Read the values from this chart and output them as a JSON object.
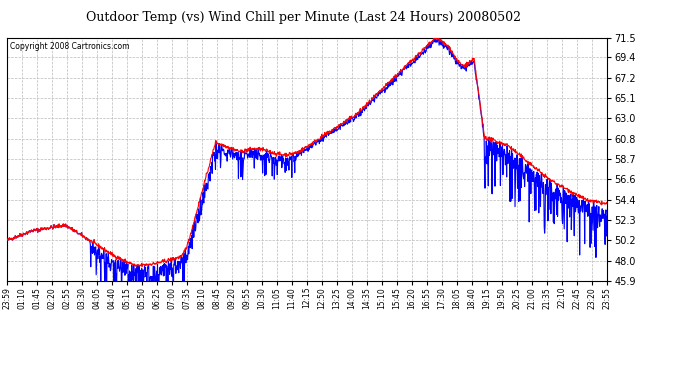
{
  "title": "Outdoor Temp (vs) Wind Chill per Minute (Last 24 Hours) 20080502",
  "copyright": "Copyright 2008 Cartronics.com",
  "ylim": [
    45.9,
    71.5
  ],
  "yticks": [
    45.9,
    48.0,
    50.2,
    52.3,
    54.4,
    56.6,
    58.7,
    60.8,
    63.0,
    65.1,
    67.2,
    69.4,
    71.5
  ],
  "xtick_labels": [
    "23:59",
    "01:10",
    "01:45",
    "02:20",
    "02:55",
    "03:30",
    "04:05",
    "04:40",
    "05:15",
    "05:50",
    "06:25",
    "07:00",
    "07:35",
    "08:10",
    "08:45",
    "09:20",
    "09:55",
    "10:30",
    "11:05",
    "11:40",
    "12:15",
    "12:50",
    "13:25",
    "14:00",
    "14:35",
    "15:10",
    "15:45",
    "16:20",
    "16:55",
    "17:30",
    "18:05",
    "18:40",
    "19:15",
    "19:50",
    "20:25",
    "21:00",
    "21:35",
    "22:10",
    "22:45",
    "23:20",
    "23:55"
  ],
  "bg_color": "#ffffff",
  "plot_bg_color": "#ffffff",
  "grid_color": "#bbbbbb",
  "temp_color": "#ff0000",
  "chill_color": "#0000ff",
  "title_color": "#000000",
  "copyright_color": "#000000",
  "line_width": 0.8
}
